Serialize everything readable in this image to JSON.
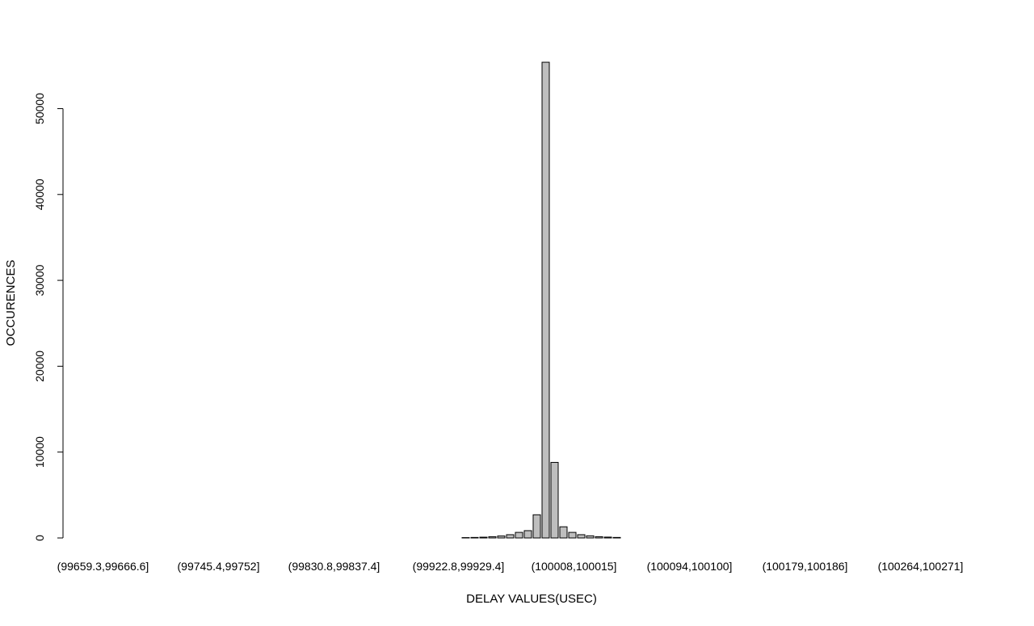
{
  "chart_data": {
    "type": "bar",
    "title": "",
    "xlabel": "DELAY VALUES(USEC)",
    "ylabel": "OCCURENCES",
    "ylim": [
      0,
      55500
    ],
    "y_ticks": [
      0,
      10000,
      20000,
      30000,
      40000,
      50000
    ],
    "grid": false,
    "legend": "none",
    "bar_count": 163,
    "bar_color": "#bebebe",
    "bar_edge_color": "#000000",
    "x_tick_labels": [
      {
        "index": 0,
        "label": "(99659.3,99666.6]"
      },
      {
        "index": 13,
        "label": "(99745.4,99752]"
      },
      {
        "index": 26,
        "label": "(99830.8,99837.4]"
      },
      {
        "index": 40,
        "label": "(99922.8,99929.4]"
      },
      {
        "index": 53,
        "label": "(100008,100015]"
      },
      {
        "index": 66,
        "label": "(100094,100100]"
      },
      {
        "index": 79,
        "label": "(100179,100186]"
      },
      {
        "index": 92,
        "label": "(100264,100271]"
      }
    ],
    "nonzero_bins": [
      {
        "index": 41,
        "value": 40
      },
      {
        "index": 42,
        "value": 60
      },
      {
        "index": 43,
        "value": 90
      },
      {
        "index": 44,
        "value": 150
      },
      {
        "index": 45,
        "value": 230
      },
      {
        "index": 46,
        "value": 380
      },
      {
        "index": 47,
        "value": 650
      },
      {
        "index": 48,
        "value": 850
      },
      {
        "index": 49,
        "value": 2700
      },
      {
        "index": 50,
        "value": 55400
      },
      {
        "index": 51,
        "value": 8800
      },
      {
        "index": 52,
        "value": 1300
      },
      {
        "index": 53,
        "value": 650
      },
      {
        "index": 54,
        "value": 380
      },
      {
        "index": 55,
        "value": 250
      },
      {
        "index": 56,
        "value": 150
      },
      {
        "index": 57,
        "value": 100
      },
      {
        "index": 58,
        "value": 60
      }
    ]
  }
}
